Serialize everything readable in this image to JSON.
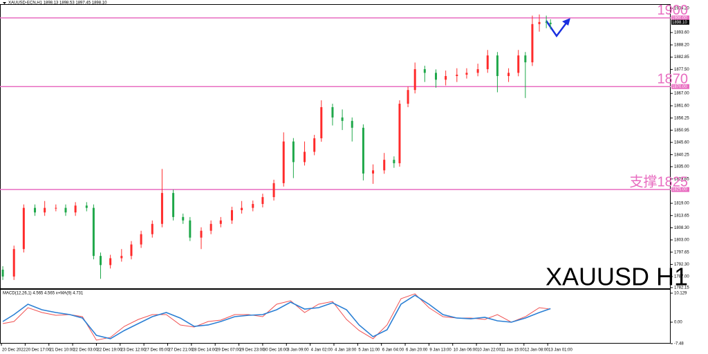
{
  "chart_data": [
    {
      "type": "candlestick",
      "title": "XAUUSD-ECN,H1  1898.13 1898.53 1897.45 1898.10",
      "annotation": "XAUUSD H1",
      "up_color": "#ff2b2b",
      "down_color": "#1fa84a",
      "xlim": [
        -1,
        479
      ],
      "ylim": [
        1782.15,
        1904.2
      ],
      "x": [
        1,
        9,
        16,
        24,
        31,
        39,
        46,
        53,
        61,
        66,
        71,
        78,
        86,
        93,
        100,
        108,
        115,
        123,
        130,
        135,
        143,
        150,
        157,
        165,
        172,
        180,
        187,
        195,
        202,
        209,
        217,
        224,
        229,
        237,
        244,
        251,
        259,
        266,
        274,
        281,
        285,
        291,
        296,
        303,
        311,
        318,
        326,
        333,
        341,
        348,
        355,
        363,
        370,
        375,
        380,
        385,
        390,
        393
      ],
      "open": [
        1790,
        1787,
        1799,
        1817,
        1815,
        1817,
        1817,
        1815,
        1818,
        1817,
        1796,
        1792,
        1795,
        1796,
        1801,
        1805.5,
        1810,
        1823.5,
        1813,
        1811.5,
        1804,
        1807,
        1810,
        1811.5,
        1816,
        1817,
        1818.7,
        1821.7,
        1827.8,
        1846,
        1837,
        1841.5,
        1847.4,
        1861,
        1856.5,
        1855,
        1852,
        1832,
        1833.4,
        1838,
        1836.5,
        1862.5,
        1868.5,
        1877.6,
        1876,
        1873,
        1874.6,
        1875.2,
        1876,
        1877.6,
        1883.6,
        1874.6,
        1876,
        1883.6,
        1880.6,
        1897.3,
        1898.2,
        1897.9
      ],
      "high": [
        1791.5,
        1800.5,
        1818.5,
        1818.5,
        1820,
        1818.5,
        1818.5,
        1819.5,
        1819.5,
        1818.5,
        1797.5,
        1796.5,
        1799,
        1802.5,
        1807,
        1811.5,
        1834,
        1825,
        1814.5,
        1813,
        1808.5,
        1811.5,
        1813,
        1817.5,
        1820,
        1820.2,
        1823.2,
        1829.3,
        1850,
        1847.5,
        1846,
        1848.9,
        1864,
        1862.5,
        1860,
        1856.5,
        1853.5,
        1836,
        1841,
        1839.5,
        1864,
        1870,
        1880.5,
        1879.1,
        1877.5,
        1877,
        1878,
        1878,
        1880,
        1886,
        1885.1,
        1878,
        1886,
        1885.1,
        1901,
        1901.5,
        1901,
        1899.4
      ],
      "low": [
        1785.5,
        1785.5,
        1797.5,
        1813.5,
        1813.5,
        1815.5,
        1813.5,
        1813.5,
        1815.5,
        1794.5,
        1786,
        1790.5,
        1793.5,
        1794.5,
        1799.5,
        1804,
        1808.5,
        1811.5,
        1810,
        1802.5,
        1799,
        1805.5,
        1808.5,
        1810,
        1814.5,
        1815.5,
        1817.2,
        1820.2,
        1826.3,
        1830,
        1835.5,
        1840,
        1845.9,
        1853,
        1851,
        1846,
        1829,
        1827.5,
        1831.9,
        1834.5,
        1835,
        1861,
        1867,
        1872,
        1869.5,
        1870.5,
        1872,
        1873.5,
        1874.5,
        1876,
        1867.5,
        1872,
        1874.5,
        1865,
        1879,
        1894,
        1895.5,
        1895
      ],
      "close": [
        1787,
        1799,
        1817,
        1815,
        1817,
        1817,
        1815,
        1818,
        1817,
        1796,
        1792,
        1795,
        1796,
        1801,
        1805.5,
        1810,
        1823.5,
        1813,
        1811.5,
        1804,
        1807,
        1810,
        1811.5,
        1816,
        1817,
        1818.7,
        1821.7,
        1827.8,
        1846,
        1837,
        1841.5,
        1847.4,
        1861,
        1856.5,
        1855,
        1852,
        1832,
        1833.4,
        1838,
        1836.5,
        1862.5,
        1868.5,
        1877.6,
        1876,
        1873,
        1874.6,
        1875.2,
        1876,
        1877.6,
        1883.6,
        1874.6,
        1876,
        1883.6,
        1880.6,
        1897.3,
        1898.2,
        1897.9,
        1897.3
      ],
      "yticks": [
        {
          "value": 1904.2,
          "label": "1904.20"
        },
        {
          "value": 1893.6,
          "label": "1893.60"
        },
        {
          "value": 1888.2,
          "label": "1888.20"
        },
        {
          "value": 1882.85,
          "label": "1882.85"
        },
        {
          "value": 1877.5,
          "label": "1877.50"
        },
        {
          "value": 1867,
          "label": "1867.00"
        },
        {
          "value": 1861.6,
          "label": "1861.60"
        },
        {
          "value": 1856.25,
          "label": "1856.25"
        },
        {
          "value": 1850.95,
          "label": "1850.95"
        },
        {
          "value": 1845.6,
          "label": "1845.60"
        },
        {
          "value": 1840.25,
          "label": "1840.25"
        },
        {
          "value": 1835,
          "label": "1835.00"
        },
        {
          "value": 1829.65,
          "label": "1829.65"
        },
        {
          "value": 1819,
          "label": "1819.00"
        },
        {
          "value": 1813.65,
          "label": "1813.65"
        },
        {
          "value": 1808.3,
          "label": "1808.30"
        },
        {
          "value": 1803,
          "label": "1803.00"
        },
        {
          "value": 1797.65,
          "label": "1797.65"
        },
        {
          "value": 1792.3,
          "label": "1792.30"
        },
        {
          "value": 1787,
          "label": "1787.00"
        },
        {
          "value": 1782.15,
          "label": "1782.15"
        }
      ],
      "levels": [
        {
          "value": 1900,
          "label": "1900",
          "tag": "1900.00"
        },
        {
          "value": 1870,
          "label": "1870",
          "tag": "1870.00"
        },
        {
          "value": 1825,
          "label": "支撑1825",
          "tag": "1825.00"
        }
      ],
      "level_color": "#e86cc0",
      "current_price": {
        "value": 1898.1,
        "label": "1898.10"
      },
      "xticks": [
        {
          "value": 0,
          "label": "20 Dec 2022"
        },
        {
          "value": 17,
          "label": "20 Dec 17:00"
        },
        {
          "value": 34,
          "label": "21 Dec 10:00"
        },
        {
          "value": 51,
          "label": "22 Dec 03:00"
        },
        {
          "value": 68,
          "label": "22 Dec 19:00"
        },
        {
          "value": 85,
          "label": "23 Dec 12:00"
        },
        {
          "value": 102,
          "label": "27 Dec 05:00"
        },
        {
          "value": 119,
          "label": "27 Dec 21:00"
        },
        {
          "value": 136,
          "label": "28 Dec 14:00"
        },
        {
          "value": 153,
          "label": "29 Dec 07:00"
        },
        {
          "value": 170,
          "label": "29 Dec 23:00"
        },
        {
          "value": 187,
          "label": "30 Dec 16:00"
        },
        {
          "value": 204,
          "label": "3 Jan 09:00"
        },
        {
          "value": 221,
          "label": "4 Jan 02:00"
        },
        {
          "value": 238,
          "label": "4 Jan 18:00"
        },
        {
          "value": 255,
          "label": "5 Jan 11:00"
        },
        {
          "value": 272,
          "label": "6 Jan 04:00"
        },
        {
          "value": 289,
          "label": "6 Jan 20:00"
        },
        {
          "value": 306,
          "label": "9 Jan 13:00"
        },
        {
          "value": 323,
          "label": "10 Jan 06:00"
        },
        {
          "value": 340,
          "label": "10 Jan 22:00"
        },
        {
          "value": 357,
          "label": "11 Jan 15:00"
        },
        {
          "value": 374,
          "label": "12 Jan 08:00"
        },
        {
          "value": 391,
          "label": "13 Jan 01:00"
        }
      ]
    },
    {
      "type": "line",
      "title": "MACD(12,26,1) 4.565 4.565 x+MA(9) 4.731",
      "xlim": [
        -1,
        479
      ],
      "ylim": [
        -7.48,
        10.129
      ],
      "yticks": [
        10.129,
        {
          "value": 0,
          "label": "0.00"
        },
        -7.48
      ],
      "x": [
        1,
        9,
        19,
        29,
        39,
        49,
        58,
        68,
        78,
        88,
        98,
        108,
        118,
        128,
        138,
        148,
        157,
        167,
        177,
        187,
        197,
        207,
        217,
        227,
        237,
        247,
        256,
        266,
        276,
        286,
        296,
        306,
        316,
        326,
        336,
        346,
        355,
        365,
        375,
        385,
        393
      ],
      "series": [
        {
          "color": "#f05050",
          "values": [
            -0.48,
            0.24,
            5.06,
            3.37,
            2.41,
            2.65,
            1.93,
            -6.27,
            -5.3,
            -1.45,
            0.96,
            2.65,
            2.65,
            -0.96,
            -1.69,
            0.24,
            0.72,
            2.65,
            2.65,
            1.93,
            6.27,
            7.47,
            3.37,
            6.27,
            7.23,
            0.96,
            -2.89,
            -5.78,
            -0.96,
            8.19,
            9.9,
            5.06,
            1.93,
            1.45,
            1.45,
            0.96,
            2.65,
            0,
            1.93,
            5.06,
            4.565
          ]
        },
        {
          "color": "#2a7fd4",
          "values": [
            0.24,
            2.65,
            6.27,
            4.34,
            3.37,
            2.65,
            1.45,
            -4.58,
            -5.78,
            -2.89,
            -0.48,
            1.93,
            3.37,
            1.45,
            -1.45,
            -0.96,
            0.24,
            1.93,
            2.41,
            2.65,
            4.34,
            6.99,
            4.58,
            5.06,
            6.75,
            4.34,
            -0.96,
            -5.06,
            -2.65,
            6.27,
            9.4,
            6.27,
            2.65,
            1.45,
            1.2,
            1.69,
            0.48,
            0,
            1.45,
            3.37,
            4.731
          ]
        }
      ]
    }
  ]
}
